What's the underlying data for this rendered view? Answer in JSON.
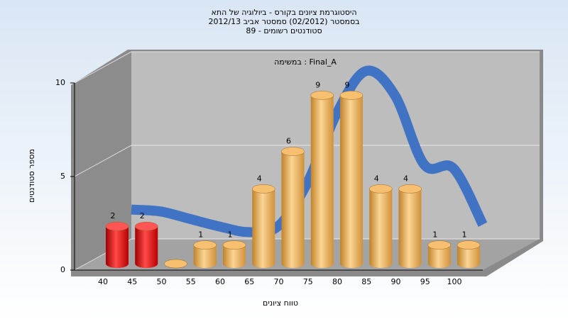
{
  "chart_data": {
    "type": "bar",
    "title": [
      "היסטוגרמת ציונים בקורס - ביולוגיה של התא",
      "בסמסטר  (02/2012)  סמסטר אביב 2012/13",
      "סטודנטים רשומים - 89"
    ],
    "annotation": "במשימה : Final_A",
    "x_label": "טווח ציונים",
    "y_label": "מספר סטודנטים",
    "categories": [
      "40",
      "45",
      "50",
      "55",
      "60",
      "65",
      "70",
      "75",
      "80",
      "85",
      "90",
      "95",
      "100"
    ],
    "values": [
      2,
      2,
      0,
      1,
      1,
      4,
      6,
      9,
      9,
      4,
      4,
      1,
      1
    ],
    "colors": [
      "red",
      "red",
      "orange",
      "orange",
      "orange",
      "orange",
      "orange",
      "orange",
      "orange",
      "orange",
      "orange",
      "orange",
      "orange"
    ],
    "curve": {
      "color": "#3a6fc4",
      "values": [
        2.4,
        2.3,
        1.9,
        1.5,
        1.2,
        1.5,
        3.8,
        7.5,
        9.8,
        8.5,
        4.8,
        4.6,
        1.6
      ]
    },
    "ylim": [
      0,
      10
    ],
    "yticks": [
      0,
      5,
      10
    ],
    "grid": true
  }
}
